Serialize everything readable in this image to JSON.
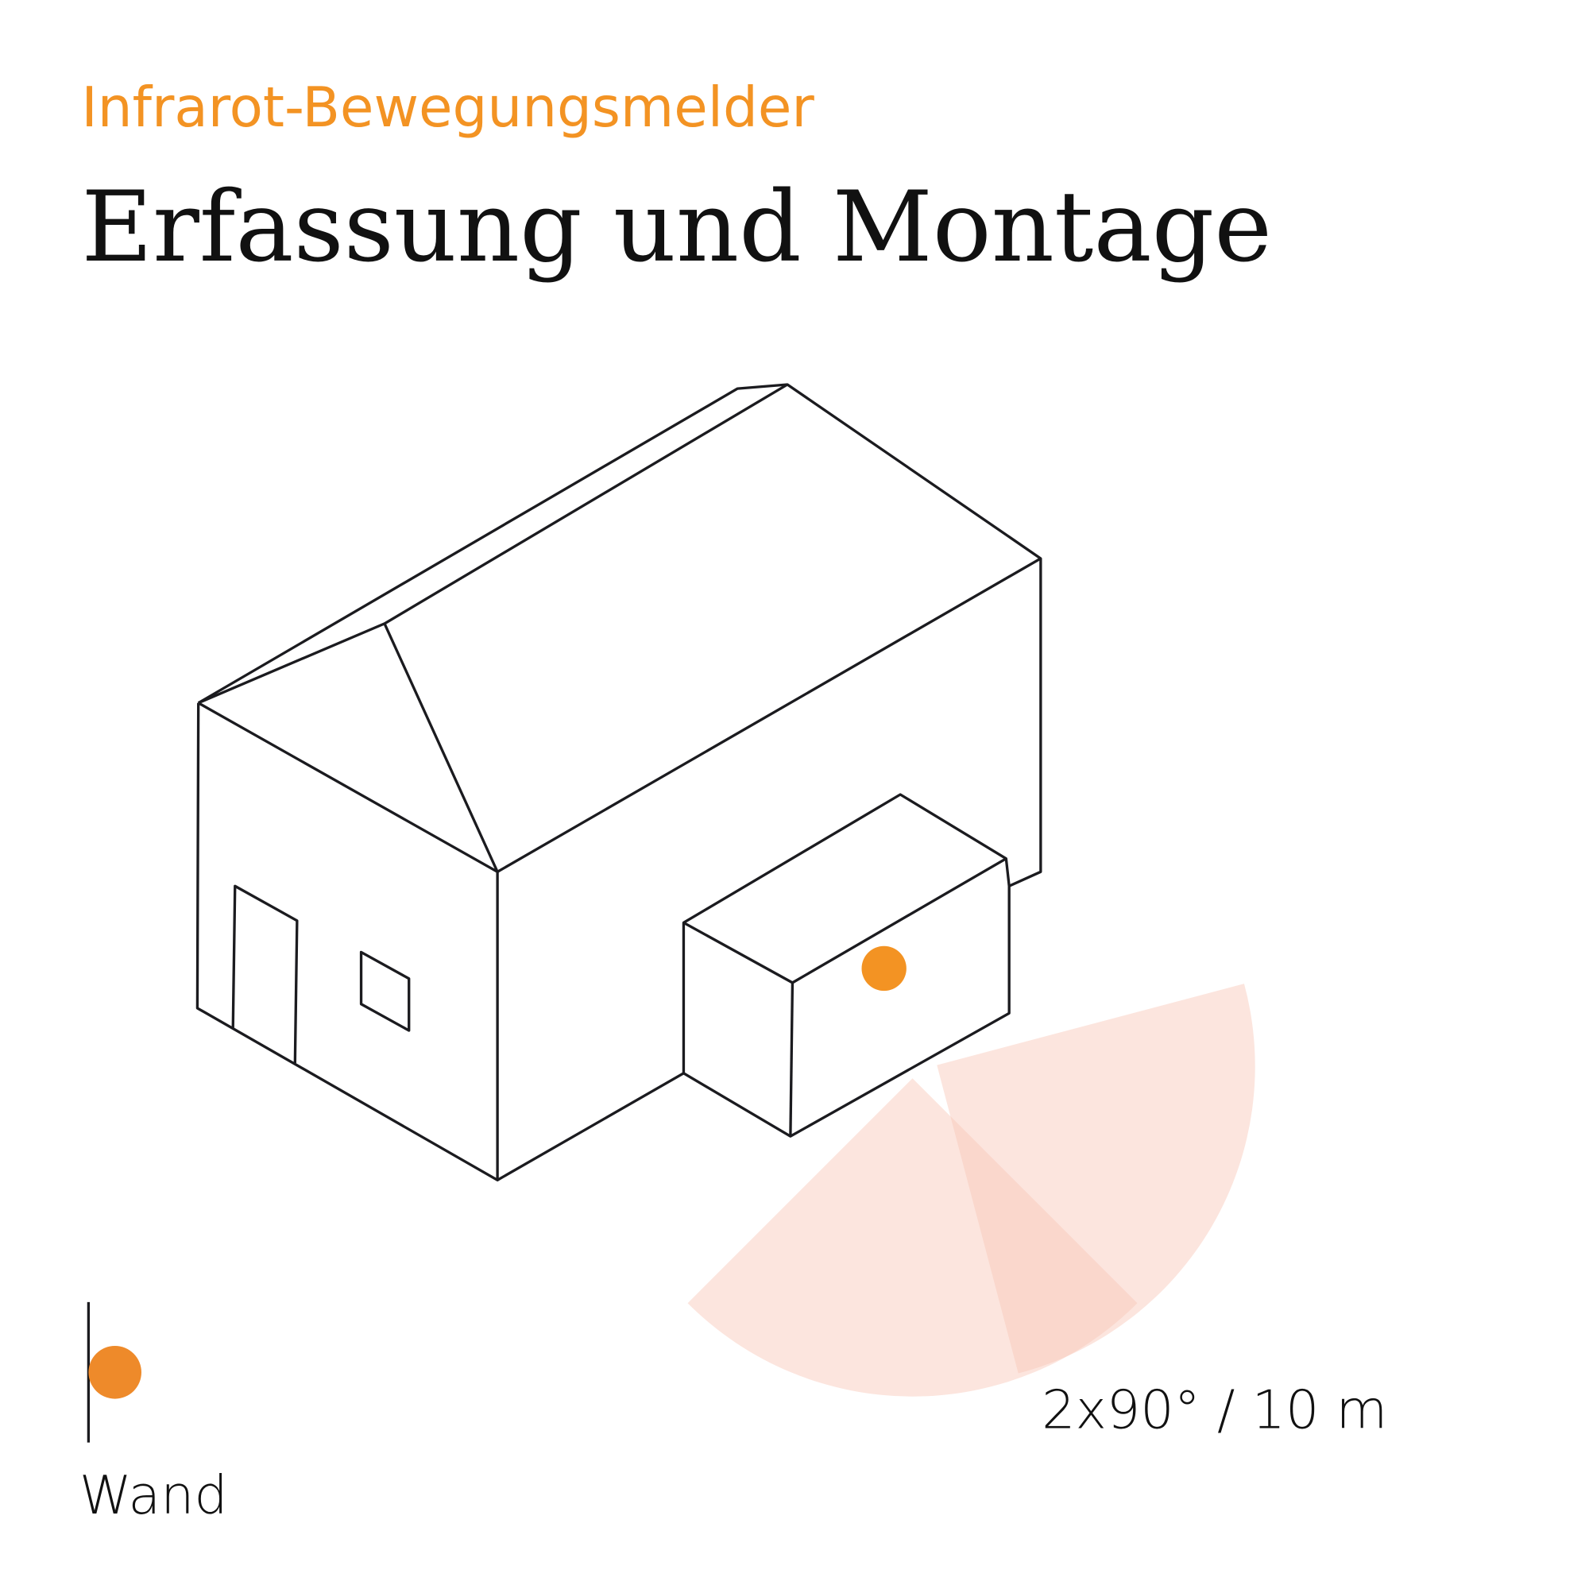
{
  "header": {
    "subtitle": "Infrarot-Bewegungsmelder",
    "title": "Erfassung und Montage"
  },
  "diagram": {
    "detection_label": "2x90° / 10 m",
    "mount_label": "Wand",
    "colors": {
      "accent": "#f39323",
      "sensor_dot": "#f39323",
      "legend_dot": "#ee8a2a",
      "detection_zone": "#fcd8cc",
      "line": "#1b1b1f",
      "title": "#111111"
    }
  }
}
